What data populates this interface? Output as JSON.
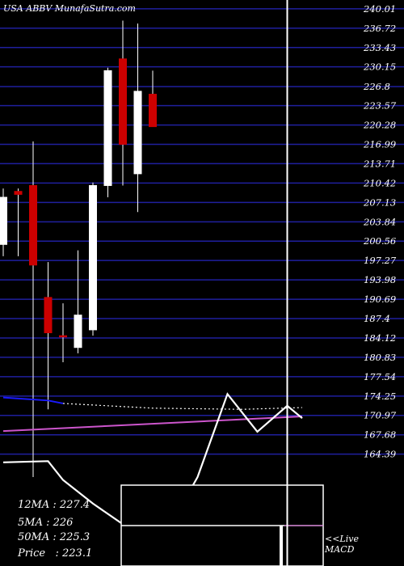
{
  "title": "USA ABBV MunafaSutra.com",
  "chart_data": {
    "type": "candlestick",
    "ylim": [
      160.5,
      241.5
    ],
    "y_ticks": [
      "240.01",
      "236.72",
      "233.43",
      "230.15",
      "226.8",
      "223.57",
      "220.28",
      "216.99",
      "213.71",
      "210.42",
      "207.13",
      "203.84",
      "200.56",
      "197.27",
      "193.98",
      "190.69",
      "187.4",
      "184.12",
      "180.83",
      "177.54",
      "174.25",
      "170.97",
      "167.68",
      "164.39"
    ],
    "candles": [
      {
        "open": 208.0,
        "high": 209.5,
        "low": 198.0,
        "close": 200.0,
        "color": "white"
      },
      {
        "open": 209.0,
        "high": 209.5,
        "low": 198.0,
        "close": 208.5,
        "color": "red"
      },
      {
        "open": 210.0,
        "high": 217.5,
        "low": 160.5,
        "close": 196.5,
        "color": "red"
      },
      {
        "open": 191.0,
        "high": 197.0,
        "low": 172.0,
        "close": 185.0,
        "color": "red"
      },
      {
        "open": 184.5,
        "high": 190.0,
        "low": 180.0,
        "close": 184.5,
        "color": "red"
      },
      {
        "open": 182.5,
        "high": 199.0,
        "low": 181.5,
        "close": 188.0,
        "color": "white"
      },
      {
        "open": 185.5,
        "high": 210.5,
        "low": 184.5,
        "close": 210.0,
        "color": "white"
      },
      {
        "open": 210.0,
        "high": 230.0,
        "low": 208.0,
        "close": 229.5,
        "color": "white"
      },
      {
        "open": 231.5,
        "high": 238.0,
        "low": 210.0,
        "close": 217.0,
        "color": "red"
      },
      {
        "open": 212.0,
        "high": 237.5,
        "low": 205.5,
        "close": 226.0,
        "color": "white"
      },
      {
        "open": 225.5,
        "high": 229.5,
        "low": 220.0,
        "close": 220.0,
        "color": "red"
      }
    ],
    "ma_lines": [
      {
        "color": "#1a1aff",
        "style": "solid",
        "points": [
          [
            0,
            174.0
          ],
          [
            3,
            173.5
          ],
          [
            4,
            173.0
          ]
        ]
      },
      {
        "color": "#ffffff",
        "style": "dotted",
        "points": [
          [
            4,
            173.0
          ],
          [
            10,
            172.2
          ],
          [
            16,
            172.0
          ],
          [
            20,
            172.3
          ]
        ]
      },
      {
        "color": "#cc55cc",
        "style": "solid",
        "points": [
          [
            0,
            168.3
          ],
          [
            20,
            170.8
          ]
        ]
      }
    ],
    "lower_series": [
      {
        "color": "#ffffff",
        "points": [
          [
            0,
            163.0
          ],
          [
            3,
            163.2
          ],
          [
            4,
            160.0
          ],
          [
            6,
            156.0
          ],
          [
            8,
            152.5
          ],
          [
            10,
            150.5
          ],
          [
            11,
            151.5
          ],
          [
            13,
            160.5
          ],
          [
            15,
            174.6
          ],
          [
            17,
            168.2
          ],
          [
            19,
            172.6
          ],
          [
            20,
            170.5
          ]
        ]
      }
    ],
    "cursor_x": 19
  },
  "stats": {
    "ma12": "12MA : 227.4",
    "ma5": "5MA : 226",
    "ma50": "50MA : 225.3",
    "price": "Price   : 223.1"
  },
  "macd": {
    "label": "<<Live MACD"
  },
  "colors": {
    "background": "#000000",
    "grid": "#1f1f9e",
    "up": "#ffffff",
    "down": "#cc0000",
    "axis_text": "#ffffff"
  }
}
